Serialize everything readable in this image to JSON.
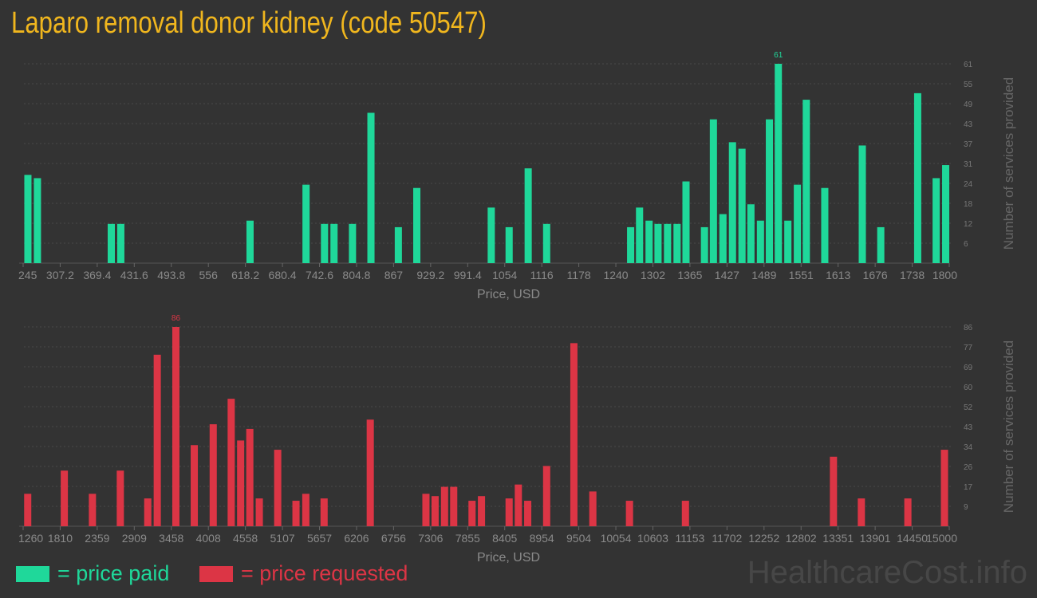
{
  "title": "Laparo removal donor kidney (code 50547)",
  "colors": {
    "paid": "#1fd89a",
    "requested": "#dc3545",
    "title": "#f0b61e",
    "background": "#333333"
  },
  "legend": {
    "paid": "= price paid",
    "requested": "= price requested"
  },
  "watermark": "HealthcareCost.info",
  "chart_data": [
    {
      "type": "bar",
      "name": "paid",
      "xlabel": "Price, USD",
      "ylabel": "Number of services provided",
      "xlim": [
        245,
        1800
      ],
      "ylim": [
        0,
        61
      ],
      "grid": true,
      "xticks": [
        "245",
        "307.2",
        "369.4",
        "431.6",
        "493.8",
        "556",
        "618.2",
        "680.4",
        "742.6",
        "804.8",
        "867",
        "929.2",
        "991.4",
        "1054",
        "1116",
        "1178",
        "1240",
        "1302",
        "1365",
        "1427",
        "1489",
        "1551",
        "1613",
        "1676",
        "1738",
        "1800"
      ],
      "yticks": [
        "6",
        "12",
        "18",
        "24",
        "31",
        "37",
        "43",
        "49",
        "55",
        "61"
      ],
      "max_label": "61",
      "x": [
        253,
        269,
        393,
        409,
        626,
        720,
        751,
        767,
        798,
        829,
        875,
        906,
        1031,
        1061,
        1093,
        1124,
        1265,
        1280,
        1296,
        1311,
        1327,
        1343,
        1358,
        1389,
        1404,
        1420,
        1436,
        1452,
        1467,
        1483,
        1498,
        1513,
        1529,
        1545,
        1560,
        1591,
        1654,
        1685,
        1747,
        1778,
        1794
      ],
      "values": [
        27,
        26,
        12,
        12,
        13,
        24,
        12,
        12,
        12,
        46,
        11,
        23,
        17,
        11,
        29,
        12,
        11,
        17,
        13,
        12,
        12,
        12,
        25,
        11,
        44,
        15,
        37,
        35,
        18,
        13,
        44,
        61,
        13,
        24,
        50,
        23,
        36,
        11,
        52,
        26,
        30
      ]
    },
    {
      "type": "bar",
      "name": "requested",
      "xlabel": "Price, USD",
      "ylabel": "Number of services provided",
      "xlim": [
        1260,
        15000
      ],
      "ylim": [
        0,
        86
      ],
      "grid": true,
      "xticks": [
        "1260",
        "1810",
        "2359",
        "2909",
        "3458",
        "4008",
        "4558",
        "5107",
        "5657",
        "6206",
        "6756",
        "7306",
        "7855",
        "8405",
        "8954",
        "9504",
        "10054",
        "10603",
        "11153",
        "11702",
        "12252",
        "12802",
        "13351",
        "13901",
        "14450",
        "15000"
      ],
      "yticks": [
        "9",
        "17",
        "26",
        "34",
        "43",
        "52",
        "60",
        "69",
        "77",
        "86"
      ],
      "max_label": "86",
      "x": [
        1328,
        1871,
        2288,
        2702,
        3109,
        3250,
        3526,
        3799,
        4080,
        4347,
        4487,
        4623,
        4764,
        5037,
        5308,
        5454,
        5725,
        6410,
        7236,
        7372,
        7512,
        7648,
        7920,
        8060,
        8470,
        8607,
        8746,
        9027,
        9431,
        9712,
        10256,
        11086,
        13282,
        13696,
        14386,
        14929
      ],
      "values": [
        14,
        24,
        14,
        24,
        12,
        74,
        86,
        35,
        44,
        55,
        37,
        42,
        12,
        33,
        11,
        14,
        12,
        46,
        14,
        13,
        17,
        17,
        11,
        13,
        12,
        18,
        11,
        26,
        79,
        15,
        11,
        11,
        30,
        12,
        12,
        33
      ]
    }
  ]
}
